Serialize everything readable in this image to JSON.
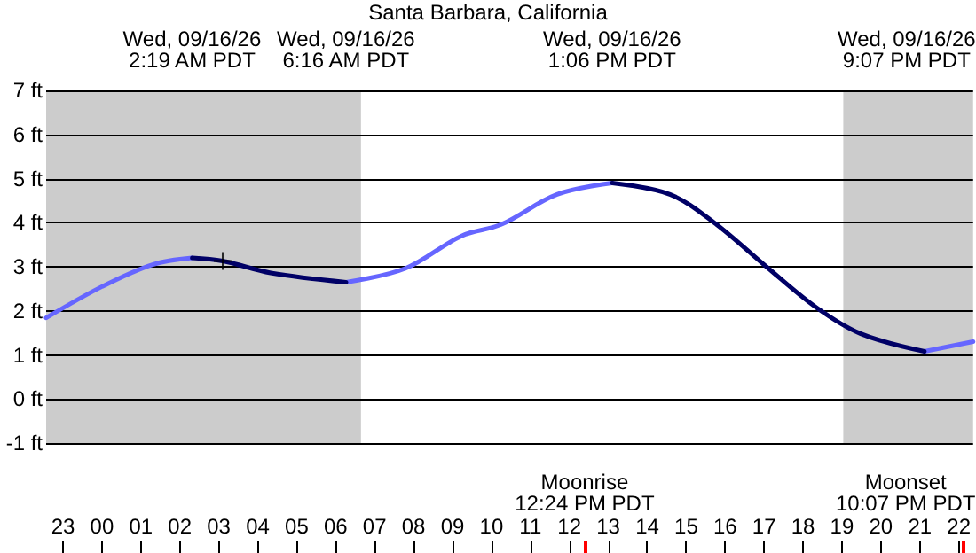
{
  "chart_data": {
    "type": "line",
    "title": "Santa Barbara, California",
    "x": [
      "--09-15T22:34",
      "--09-16T00:00",
      "--09-16T01:18",
      "--09-16T02:19",
      "--09-16T03:06",
      "--09-16T04:20",
      "--09-16T06:16",
      "--09-16T07:47",
      "--09-16T09:14",
      "--09-16T10:15",
      "--09-16T11:41",
      "--09-16T13:06",
      "--09-16T14:35",
      "--09-16T15:44",
      "--09-16T17:02",
      "--09-16T18:20",
      "--09-16T19:29",
      "--09-16T21:07",
      "--09-16T22:22"
    ],
    "series": [
      {
        "color": "#6666ff",
        "values": [
          1.84,
          2.55,
          3.05,
          3.2,
          null,
          null,
          2.65,
          2.96,
          3.7,
          3.96,
          4.64,
          4.9,
          null,
          null,
          null,
          null,
          null,
          1.08,
          1.3
        ]
      },
      {
        "color": "#000066",
        "values": [
          null,
          null,
          null,
          3.2,
          3.13,
          2.86,
          2.65,
          null,
          null,
          null,
          null,
          4.9,
          4.64,
          3.99,
          3.02,
          2.08,
          1.48,
          1.08,
          null
        ]
      },
      {
        "type": "scatter",
        "marker": "cross",
        "color": "#000000",
        "x": [
          "--09-16T03:06"
        ],
        "values": [
          3.13
        ]
      }
    ],
    "xlim": [
      "--09-15T22:34",
      "--09-16T22:22"
    ],
    "ylim": [
      -1,
      7
    ],
    "xticks": [
      {
        "value": "--09-15T23:00",
        "label": "23"
      },
      {
        "value": "--09-16T00:00",
        "label": "00"
      },
      {
        "value": "--09-16T01:00",
        "label": "01"
      },
      {
        "value": "--09-16T02:00",
        "label": "02"
      },
      {
        "value": "--09-16T03:00",
        "label": "03"
      },
      {
        "value": "--09-16T04:00",
        "label": "04"
      },
      {
        "value": "--09-16T05:00",
        "label": "05"
      },
      {
        "value": "--09-16T06:00",
        "label": "06"
      },
      {
        "value": "--09-16T07:00",
        "label": "07"
      },
      {
        "value": "--09-16T08:00",
        "label": "08"
      },
      {
        "value": "--09-16T09:00",
        "label": "09"
      },
      {
        "value": "--09-16T10:00",
        "label": "10"
      },
      {
        "value": "--09-16T11:00",
        "label": "11"
      },
      {
        "value": "--09-16T12:00",
        "label": "12"
      },
      {
        "value": "--09-16T13:00",
        "label": "13"
      },
      {
        "value": "--09-16T14:00",
        "label": "14"
      },
      {
        "value": "--09-16T15:00",
        "label": "15"
      },
      {
        "value": "--09-16T16:00",
        "label": "16"
      },
      {
        "value": "--09-16T17:00",
        "label": "17"
      },
      {
        "value": "--09-16T18:00",
        "label": "18"
      },
      {
        "value": "--09-16T19:00",
        "label": "19"
      },
      {
        "value": "--09-16T20:00",
        "label": "20"
      },
      {
        "value": "--09-16T21:00",
        "label": "21"
      },
      {
        "value": "--09-16T22:00",
        "label": "22"
      }
    ],
    "yticks": [
      {
        "value": -1,
        "label": "-1 ft"
      },
      {
        "value": 0,
        "label": "0 ft"
      },
      {
        "value": 1,
        "label": "1 ft"
      },
      {
        "value": 2,
        "label": "2 ft"
      },
      {
        "value": 3,
        "label": "3 ft"
      },
      {
        "value": 4,
        "label": "4 ft"
      },
      {
        "value": 5,
        "label": "5 ft"
      },
      {
        "value": 6,
        "label": "6 ft"
      },
      {
        "value": 7,
        "label": "7 ft"
      }
    ],
    "grid": "y",
    "marker": "none",
    "line_style": "solid",
    "bands": [
      {
        "axis": "x",
        "from": "--09-15T22:34",
        "to": "--09-16T06:39",
        "color": "#cccccc"
      },
      {
        "axis": "x",
        "from": "--09-16T19:02",
        "to": "--09-16T22:22",
        "color": "#cccccc"
      }
    ],
    "ref_lines": [
      {
        "axis": "x",
        "value": "--09-16T12:24",
        "label": "Moonrise\n12:24 PM PDT",
        "color": "#ff0000"
      },
      {
        "axis": "x",
        "value": "--09-16T22:07",
        "label": "Moonset\n10:07 PM PDT",
        "color": "#ff0000"
      }
    ],
    "annotations": [
      "Wed, 09/16/26\n2:19 AM PDT",
      "Wed, 09/16/26\n6:16 AM PDT",
      "Wed, 09/16/26\n1:06 PM PDT",
      "Wed, 09/16/26\n9:07 PM PDT"
    ]
  }
}
